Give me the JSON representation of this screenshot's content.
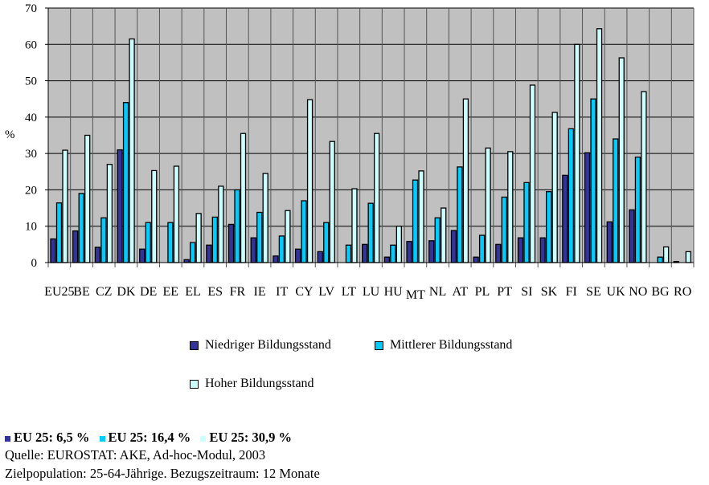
{
  "chart_data": {
    "type": "bar",
    "title": "",
    "xlabel": "",
    "ylabel": "%",
    "ylim": [
      0,
      70
    ],
    "yticks": [
      "0",
      "10",
      "20",
      "30",
      "40",
      "50",
      "60",
      "70"
    ],
    "grid": true,
    "legend_position": "bottom",
    "categories": [
      "EU25",
      "BE",
      "CZ",
      "DK",
      "DE",
      "EE",
      "EL",
      "ES",
      "FR",
      "IE",
      "IT",
      "CY",
      "LV",
      "LT",
      "LU",
      "HU",
      "MT",
      "NL",
      "AT",
      "PL",
      "PT",
      "SI",
      "SK",
      "FI",
      "SE",
      "UK",
      "NO",
      "BG",
      "RO"
    ],
    "series": [
      {
        "name": "Niedriger Bildungsstand",
        "color": "#333399",
        "values": [
          6.5,
          8.7,
          4.2,
          31,
          3.7,
          0,
          0.8,
          4.8,
          10.5,
          6.8,
          1.8,
          3.7,
          3,
          0,
          5,
          1.5,
          5.8,
          6,
          8.8,
          1.5,
          5,
          6.8,
          6.8,
          24,
          30.2,
          11.2,
          14.5,
          0,
          0.3
        ]
      },
      {
        "name": "Mittlerer Bildungsstand",
        "color": "#00CCFF",
        "values": [
          16.4,
          19,
          12.3,
          44,
          11,
          11,
          5.5,
          12.5,
          20,
          13.8,
          7.3,
          17,
          11,
          4.8,
          16.3,
          4.8,
          22.7,
          12.3,
          26.3,
          7.5,
          18,
          22,
          19.5,
          36.8,
          45,
          34,
          29,
          1.5,
          0
        ]
      },
      {
        "name": "Hoher Bildungsstand",
        "color": "#CCFFFF",
        "values": [
          30.9,
          35,
          27,
          61.5,
          25.3,
          26.5,
          13.5,
          21,
          35.5,
          24.5,
          14.3,
          44.8,
          33.3,
          20.3,
          35.5,
          10,
          25.2,
          15,
          45,
          31.5,
          30.5,
          48.8,
          41.3,
          60,
          64.3,
          56.3,
          47,
          4.3,
          3
        ]
      }
    ]
  },
  "footer": {
    "eu_low": "EU 25: 6,5 %",
    "eu_mid": "EU 25: 16,4 %",
    "eu_high": "EU 25: 30,9 %",
    "source": "Quelle: EUROSTAT: AKE, Ad-hoc-Modul, 2003",
    "population": "Zielpopulation: 25-64-Jährige. Bezugszeitraum: 12 Monate"
  }
}
